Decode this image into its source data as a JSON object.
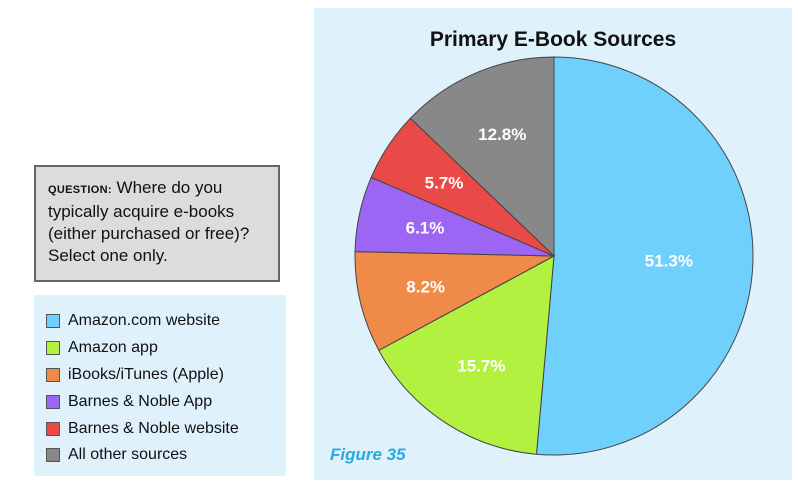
{
  "question": {
    "prefix": "QUESTION:",
    "text": "Where do you typically acquire e-books (either purchased or free)? Select one only."
  },
  "figure_label": "Figure 35",
  "chart_data": {
    "type": "pie",
    "title": "Primary E-Book Sources",
    "start": "12 o'clock, clockwise",
    "legend_position": "left",
    "slices": [
      {
        "name": "Amazon.com website",
        "value": 51.3,
        "label": "51.3%",
        "color": "#6fd0fb"
      },
      {
        "name": "Amazon app",
        "value": 15.7,
        "label": "15.7%",
        "color": "#b2f140"
      },
      {
        "name": "iBooks/iTunes (Apple)",
        "value": 8.2,
        "label": "8.2%",
        "color": "#ef8a48"
      },
      {
        "name": "Barnes & Noble App",
        "value": 6.1,
        "label": "6.1%",
        "color": "#9d65f4"
      },
      {
        "name": "Barnes & Noble website",
        "value": 5.7,
        "label": "5.7%",
        "color": "#e94a47"
      },
      {
        "name": "All other sources",
        "value": 12.8,
        "label": "12.8%",
        "color": "#888888"
      }
    ]
  }
}
